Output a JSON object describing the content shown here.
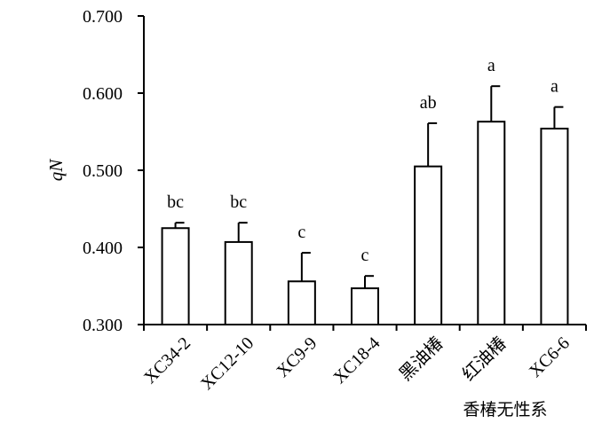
{
  "chart_data": {
    "type": "bar",
    "title": "",
    "ylabel": "qN",
    "xlabel": "香椿无性系",
    "ylim": [
      0.3,
      0.7
    ],
    "yticks": [
      "0.300",
      "0.400",
      "0.500",
      "0.600",
      "0.700"
    ],
    "categories": [
      "XC34-2",
      "XC12-10",
      "XC9-9",
      "XC18-4",
      "黑油椿",
      "红油椿",
      "XC6-6"
    ],
    "values": [
      0.425,
      0.407,
      0.356,
      0.347,
      0.505,
      0.563,
      0.554
    ],
    "error_upper": [
      0.432,
      0.432,
      0.393,
      0.363,
      0.561,
      0.609,
      0.582
    ],
    "significance": [
      "bc",
      "bc",
      "c",
      "c",
      "ab",
      "a",
      "a"
    ],
    "grid": false,
    "legend": "none",
    "bar_fill": "#ffffff",
    "stroke_color": "#000000"
  }
}
